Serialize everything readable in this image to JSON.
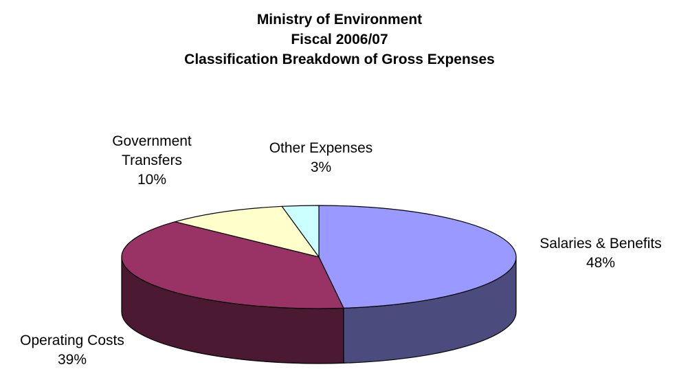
{
  "chart_data": {
    "type": "pie",
    "title_lines": [
      "Ministry of Environment",
      "Fiscal 2006/07",
      "Classification Breakdown of Gross Expenses"
    ],
    "slices": [
      {
        "name": "Salaries & Benefits",
        "label_lines": [
          "Salaries & Benefits"
        ],
        "percent_label": "48%",
        "value": 48,
        "color": "#9999ff",
        "side_color": "#4b4b7d"
      },
      {
        "name": "Operating Costs",
        "label_lines": [
          "Operating Costs"
        ],
        "percent_label": "39%",
        "value": 39,
        "color": "#993366",
        "side_color": "#4b1932"
      },
      {
        "name": "Government Transfers",
        "label_lines": [
          "Government",
          "Transfers"
        ],
        "percent_label": "10%",
        "value": 10,
        "color": "#ffffcc",
        "side_color": "#7d7d64"
      },
      {
        "name": "Other Expenses",
        "label_lines": [
          "Other Expenses"
        ],
        "percent_label": "3%",
        "value": 3,
        "color": "#ccffff",
        "side_color": "#647d7d"
      }
    ],
    "style": "3d-pie",
    "legend": "none"
  }
}
